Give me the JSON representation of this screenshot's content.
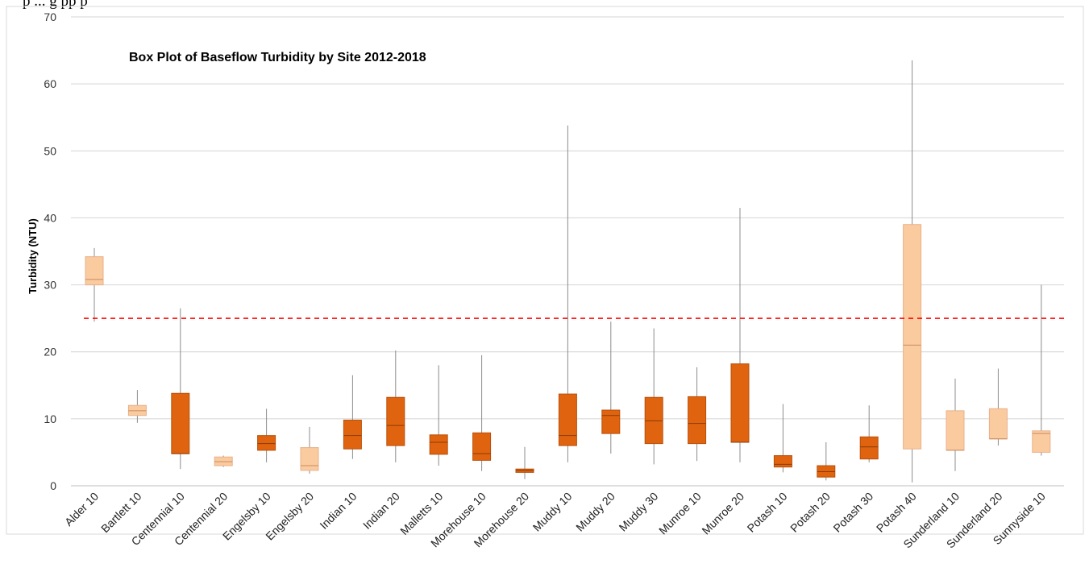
{
  "header_text": "p ... g   pp   p",
  "chart_data": {
    "type": "box",
    "title": "Box Plot of Baseflow Turbidity by Site 2012-2018",
    "xlabel": "",
    "ylabel": "Turbidity (NTU)",
    "ylim": [
      0,
      70
    ],
    "yticks": [
      0,
      10,
      20,
      30,
      40,
      50,
      60,
      70
    ],
    "grid": true,
    "threshold": {
      "value": 25,
      "color": "#ff0000",
      "style": "dashed"
    },
    "colors": {
      "dark": "#e0640f",
      "light": "#fbcba0",
      "whisker": "#8c8c8c",
      "grid": "#d4d4d4"
    },
    "categories": [
      "Alder 10",
      "Bartlett 10",
      "Centennial 10",
      "Centennial 20",
      "Engelsby 10",
      "Engelsby 20",
      "Indian 10",
      "Indian 20",
      "Malletts 10",
      "Morehouse 10",
      "Morehouse 20",
      "Muddy 10",
      "Muddy 20",
      "Muddy 30",
      "Munroe 10",
      "Munroe 20",
      "Potash 10",
      "Potash 20",
      "Potash 30",
      "Potash 40",
      "Sunderland 10",
      "Sunderland 20",
      "Sunnyside 10"
    ],
    "series": [
      {
        "min": 24.5,
        "q1": 30.0,
        "median": 30.8,
        "q3": 34.2,
        "max": 35.5,
        "shade": "light"
      },
      {
        "min": 9.4,
        "q1": 10.5,
        "median": 11.2,
        "q3": 12.0,
        "max": 14.3,
        "shade": "light"
      },
      {
        "min": 2.5,
        "q1": 4.8,
        "median": 4.8,
        "q3": 13.8,
        "max": 26.5,
        "shade": "dark"
      },
      {
        "min": 2.8,
        "q1": 3.0,
        "median": 3.6,
        "q3": 4.3,
        "max": 4.5,
        "shade": "light"
      },
      {
        "min": 3.5,
        "q1": 5.3,
        "median": 6.3,
        "q3": 7.5,
        "max": 11.5,
        "shade": "dark"
      },
      {
        "min": 1.8,
        "q1": 2.3,
        "median": 3.0,
        "q3": 5.7,
        "max": 8.8,
        "shade": "light"
      },
      {
        "min": 4.0,
        "q1": 5.5,
        "median": 7.5,
        "q3": 9.8,
        "max": 16.5,
        "shade": "dark"
      },
      {
        "min": 3.5,
        "q1": 6.0,
        "median": 9.0,
        "q3": 13.2,
        "max": 20.2,
        "shade": "dark"
      },
      {
        "min": 3.0,
        "q1": 4.7,
        "median": 6.5,
        "q3": 7.6,
        "max": 18.0,
        "shade": "dark"
      },
      {
        "min": 2.2,
        "q1": 3.8,
        "median": 4.8,
        "q3": 7.9,
        "max": 19.5,
        "shade": "dark"
      },
      {
        "min": 1.0,
        "q1": 2.0,
        "median": 2.3,
        "q3": 2.5,
        "max": 5.8,
        "shade": "dark"
      },
      {
        "min": 3.5,
        "q1": 6.0,
        "median": 7.5,
        "q3": 13.7,
        "max": 53.8,
        "shade": "dark"
      },
      {
        "min": 4.8,
        "q1": 7.8,
        "median": 10.5,
        "q3": 11.3,
        "max": 24.5,
        "shade": "dark"
      },
      {
        "min": 3.2,
        "q1": 6.3,
        "median": 9.7,
        "q3": 13.2,
        "max": 23.5,
        "shade": "dark"
      },
      {
        "min": 3.7,
        "q1": 6.3,
        "median": 9.3,
        "q3": 13.3,
        "max": 17.7,
        "shade": "dark"
      },
      {
        "min": 3.5,
        "q1": 6.5,
        "median": 6.5,
        "q3": 18.2,
        "max": 41.5,
        "shade": "dark"
      },
      {
        "min": 2.0,
        "q1": 2.8,
        "median": 3.2,
        "q3": 4.5,
        "max": 12.2,
        "shade": "dark"
      },
      {
        "min": 0.8,
        "q1": 1.3,
        "median": 2.1,
        "q3": 3.0,
        "max": 6.5,
        "shade": "dark"
      },
      {
        "min": 3.5,
        "q1": 4.0,
        "median": 5.8,
        "q3": 7.3,
        "max": 12.0,
        "shade": "dark"
      },
      {
        "min": 0.5,
        "q1": 5.5,
        "median": 21.0,
        "q3": 39.0,
        "max": 63.5,
        "shade": "light"
      },
      {
        "min": 2.2,
        "q1": 5.3,
        "median": 5.3,
        "q3": 11.2,
        "max": 16.0,
        "shade": "light"
      },
      {
        "min": 6.0,
        "q1": 7.0,
        "median": 7.0,
        "q3": 11.5,
        "max": 17.5,
        "shade": "light"
      },
      {
        "min": 4.5,
        "q1": 5.0,
        "median": 7.8,
        "q3": 8.2,
        "max": 30.0,
        "shade": "light"
      }
    ]
  }
}
